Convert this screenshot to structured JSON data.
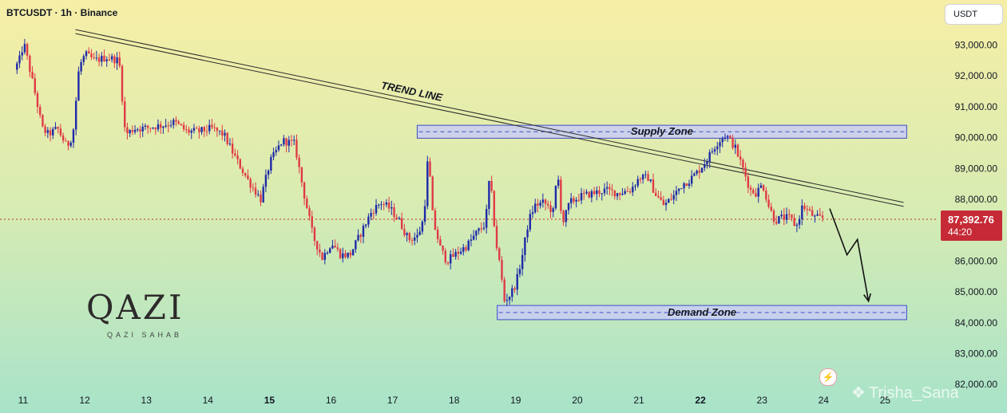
{
  "header": {
    "symbol_title": "BTCUSDT · 1h · Binance"
  },
  "currency_button": {
    "label": "USDT"
  },
  "price_badge": {
    "price": "87,392.76",
    "countdown": "44:20"
  },
  "logo": {
    "big_text": "QAZI",
    "small_text": "QAZI SAHAB"
  },
  "watermark": {
    "text": "Trisha_Sana"
  },
  "icons": {
    "flash": "flash-icon",
    "watermark": "binance-diamond-icon"
  },
  "colors": {
    "up": "#1e2aa8",
    "down": "#e03a46",
    "zone_fill": "#c9cdf5",
    "zone_border": "#3f4fc4",
    "badge": "#c62a36"
  },
  "chart_data": {
    "type": "candlestick",
    "price_axis": {
      "ylim": [
        81700,
        94400
      ],
      "ticks": [
        "93,000.00",
        "92,000.00",
        "91,000.00",
        "90,000.00",
        "89,000.00",
        "88,000.00",
        "86,000.00",
        "85,000.00",
        "84,000.00",
        "83,000.00",
        "82,000.00"
      ]
    },
    "time_axis": {
      "ticks": [
        {
          "label": "11",
          "bold": false
        },
        {
          "label": "12",
          "bold": false
        },
        {
          "label": "13",
          "bold": false
        },
        {
          "label": "14",
          "bold": false
        },
        {
          "label": "15",
          "bold": true
        },
        {
          "label": "16",
          "bold": false
        },
        {
          "label": "17",
          "bold": false
        },
        {
          "label": "18",
          "bold": false
        },
        {
          "label": "19",
          "bold": false
        },
        {
          "label": "20",
          "bold": false
        },
        {
          "label": "21",
          "bold": false
        },
        {
          "label": "22",
          "bold": true
        },
        {
          "label": "23",
          "bold": false
        },
        {
          "label": "24",
          "bold": false
        },
        {
          "label": "25",
          "bold": false
        }
      ]
    },
    "current_price": 87392.76,
    "zones": [
      {
        "name": "Supply Zone",
        "low": 89980,
        "high": 90400,
        "from": 17.4,
        "to": 25.35
      },
      {
        "name": "Demand Zone",
        "low": 84100,
        "high": 84560,
        "from": 18.7,
        "to": 25.35
      }
    ],
    "trend_line": {
      "label": "TREND LINE",
      "start": {
        "day": 11.85,
        "price": 93500
      },
      "end": {
        "day": 25.3,
        "price": 87900
      }
    },
    "projection": [
      {
        "day": 24.1,
        "price": 87700
      },
      {
        "day": 24.38,
        "price": 86200
      },
      {
        "day": 24.55,
        "price": 86700
      },
      {
        "day": 24.73,
        "price": 84700
      }
    ],
    "price_path": [
      [
        10.9,
        92200
      ],
      [
        11.0,
        92600
      ],
      [
        11.05,
        93100
      ],
      [
        11.15,
        92200
      ],
      [
        11.25,
        91300
      ],
      [
        11.35,
        90300
      ],
      [
        11.45,
        90100
      ],
      [
        11.6,
        90300
      ],
      [
        11.75,
        89700
      ],
      [
        11.85,
        90100
      ],
      [
        11.95,
        92300
      ],
      [
        12.05,
        92700
      ],
      [
        12.2,
        92500
      ],
      [
        12.4,
        92600
      ],
      [
        12.6,
        92500
      ],
      [
        12.7,
        90100
      ],
      [
        12.85,
        90300
      ],
      [
        13.0,
        90300
      ],
      [
        13.3,
        90400
      ],
      [
        13.5,
        90500
      ],
      [
        13.7,
        90200
      ],
      [
        13.9,
        90200
      ],
      [
        14.1,
        90300
      ],
      [
        14.3,
        90100
      ],
      [
        14.5,
        89300
      ],
      [
        14.7,
        88600
      ],
      [
        14.9,
        88000
      ],
      [
        15.05,
        89200
      ],
      [
        15.25,
        89900
      ],
      [
        15.45,
        89800
      ],
      [
        15.6,
        88200
      ],
      [
        15.75,
        86800
      ],
      [
        15.9,
        86100
      ],
      [
        16.05,
        86600
      ],
      [
        16.2,
        86200
      ],
      [
        16.35,
        86200
      ],
      [
        16.5,
        86800
      ],
      [
        16.7,
        87600
      ],
      [
        16.85,
        87900
      ],
      [
        17.0,
        87700
      ],
      [
        17.15,
        87300
      ],
      [
        17.3,
        86700
      ],
      [
        17.45,
        86800
      ],
      [
        17.55,
        87400
      ],
      [
        17.62,
        89500
      ],
      [
        17.7,
        87300
      ],
      [
        17.82,
        86400
      ],
      [
        17.92,
        86000
      ],
      [
        18.05,
        86200
      ],
      [
        18.25,
        86500
      ],
      [
        18.4,
        86900
      ],
      [
        18.55,
        87200
      ],
      [
        18.62,
        88800
      ],
      [
        18.72,
        86600
      ],
      [
        18.8,
        85700
      ],
      [
        18.85,
        84700
      ],
      [
        18.95,
        84900
      ],
      [
        19.05,
        85300
      ],
      [
        19.15,
        86200
      ],
      [
        19.25,
        87300
      ],
      [
        19.35,
        87800
      ],
      [
        19.5,
        87900
      ],
      [
        19.65,
        87600
      ],
      [
        19.72,
        88900
      ],
      [
        19.8,
        87200
      ],
      [
        19.92,
        87900
      ],
      [
        20.1,
        88100
      ],
      [
        20.3,
        88200
      ],
      [
        20.5,
        88300
      ],
      [
        20.7,
        88200
      ],
      [
        20.9,
        88300
      ],
      [
        21.05,
        88700
      ],
      [
        21.2,
        88700
      ],
      [
        21.3,
        88200
      ],
      [
        21.45,
        87800
      ],
      [
        21.6,
        88100
      ],
      [
        21.75,
        88500
      ],
      [
        21.85,
        88600
      ],
      [
        22.0,
        88900
      ],
      [
        22.15,
        89300
      ],
      [
        22.3,
        89800
      ],
      [
        22.45,
        90100
      ],
      [
        22.6,
        89700
      ],
      [
        22.75,
        88900
      ],
      [
        22.85,
        88300
      ],
      [
        22.95,
        88200
      ],
      [
        23.05,
        88500
      ],
      [
        23.15,
        87800
      ],
      [
        23.25,
        87300
      ],
      [
        23.35,
        87400
      ],
      [
        23.5,
        87400
      ],
      [
        23.6,
        87100
      ],
      [
        23.7,
        87800
      ],
      [
        23.8,
        87600
      ],
      [
        23.9,
        87400
      ],
      [
        24.0,
        87392
      ]
    ]
  }
}
